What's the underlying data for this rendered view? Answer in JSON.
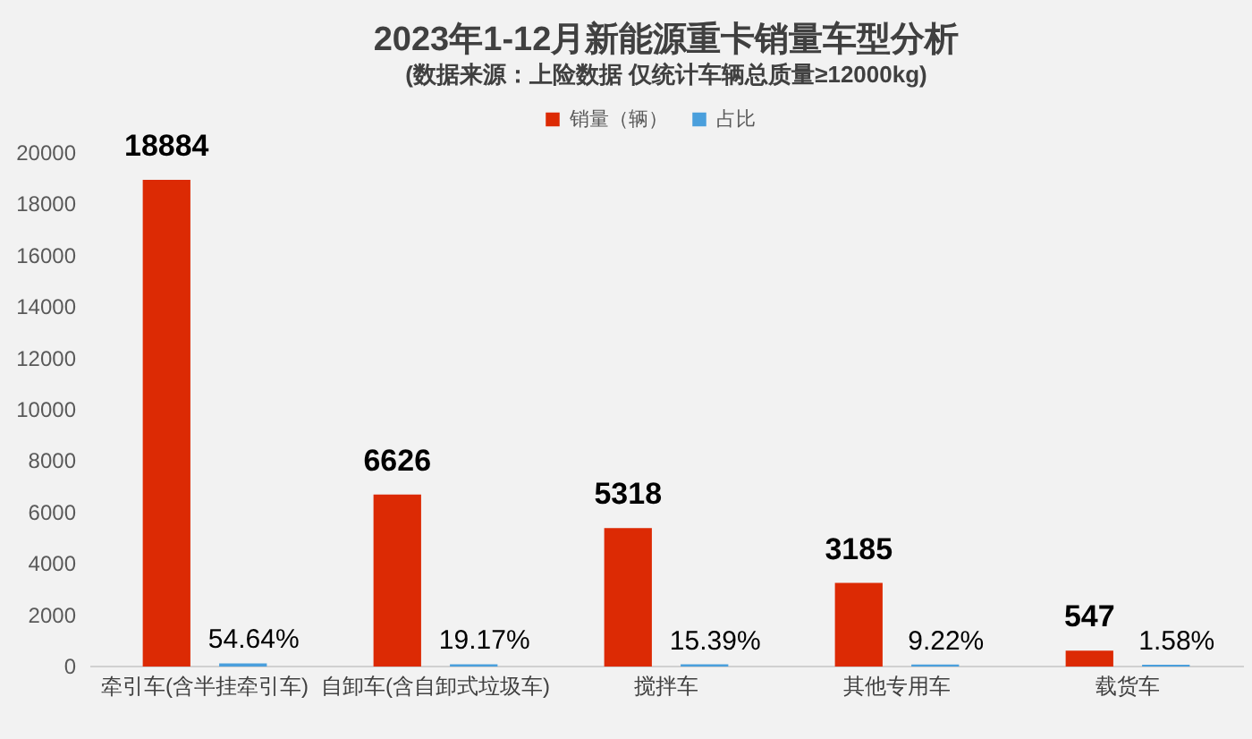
{
  "chart_data": {
    "type": "bar",
    "title": "2023年1-12月新能源重卡销量车型分析",
    "subtitle": "(数据来源：上险数据 仅统计车辆总质量≥12000kg)",
    "categories": [
      "牵引车(含半挂牵引车)",
      "自卸车(含自卸式垃圾车)",
      "搅拌车",
      "其他专用车",
      "载货车"
    ],
    "series": [
      {
        "name": "销量（辆）",
        "color": "#dc2a04",
        "values": [
          18884,
          6626,
          5318,
          3185,
          547
        ],
        "value_labels": [
          "18884",
          "6626",
          "5318",
          "3185",
          "547"
        ]
      },
      {
        "name": "占比",
        "color": "#4a9fdc",
        "values": [
          54.64,
          19.17,
          15.39,
          9.22,
          1.58
        ],
        "value_labels": [
          "54.64%",
          "19.17%",
          "15.39%",
          "9.22%",
          "1.58%"
        ]
      }
    ],
    "ylim": [
      0,
      20000
    ],
    "yticks": [
      0,
      2000,
      4000,
      6000,
      8000,
      10000,
      12000,
      14000,
      16000,
      18000,
      20000
    ],
    "legend": "top"
  }
}
